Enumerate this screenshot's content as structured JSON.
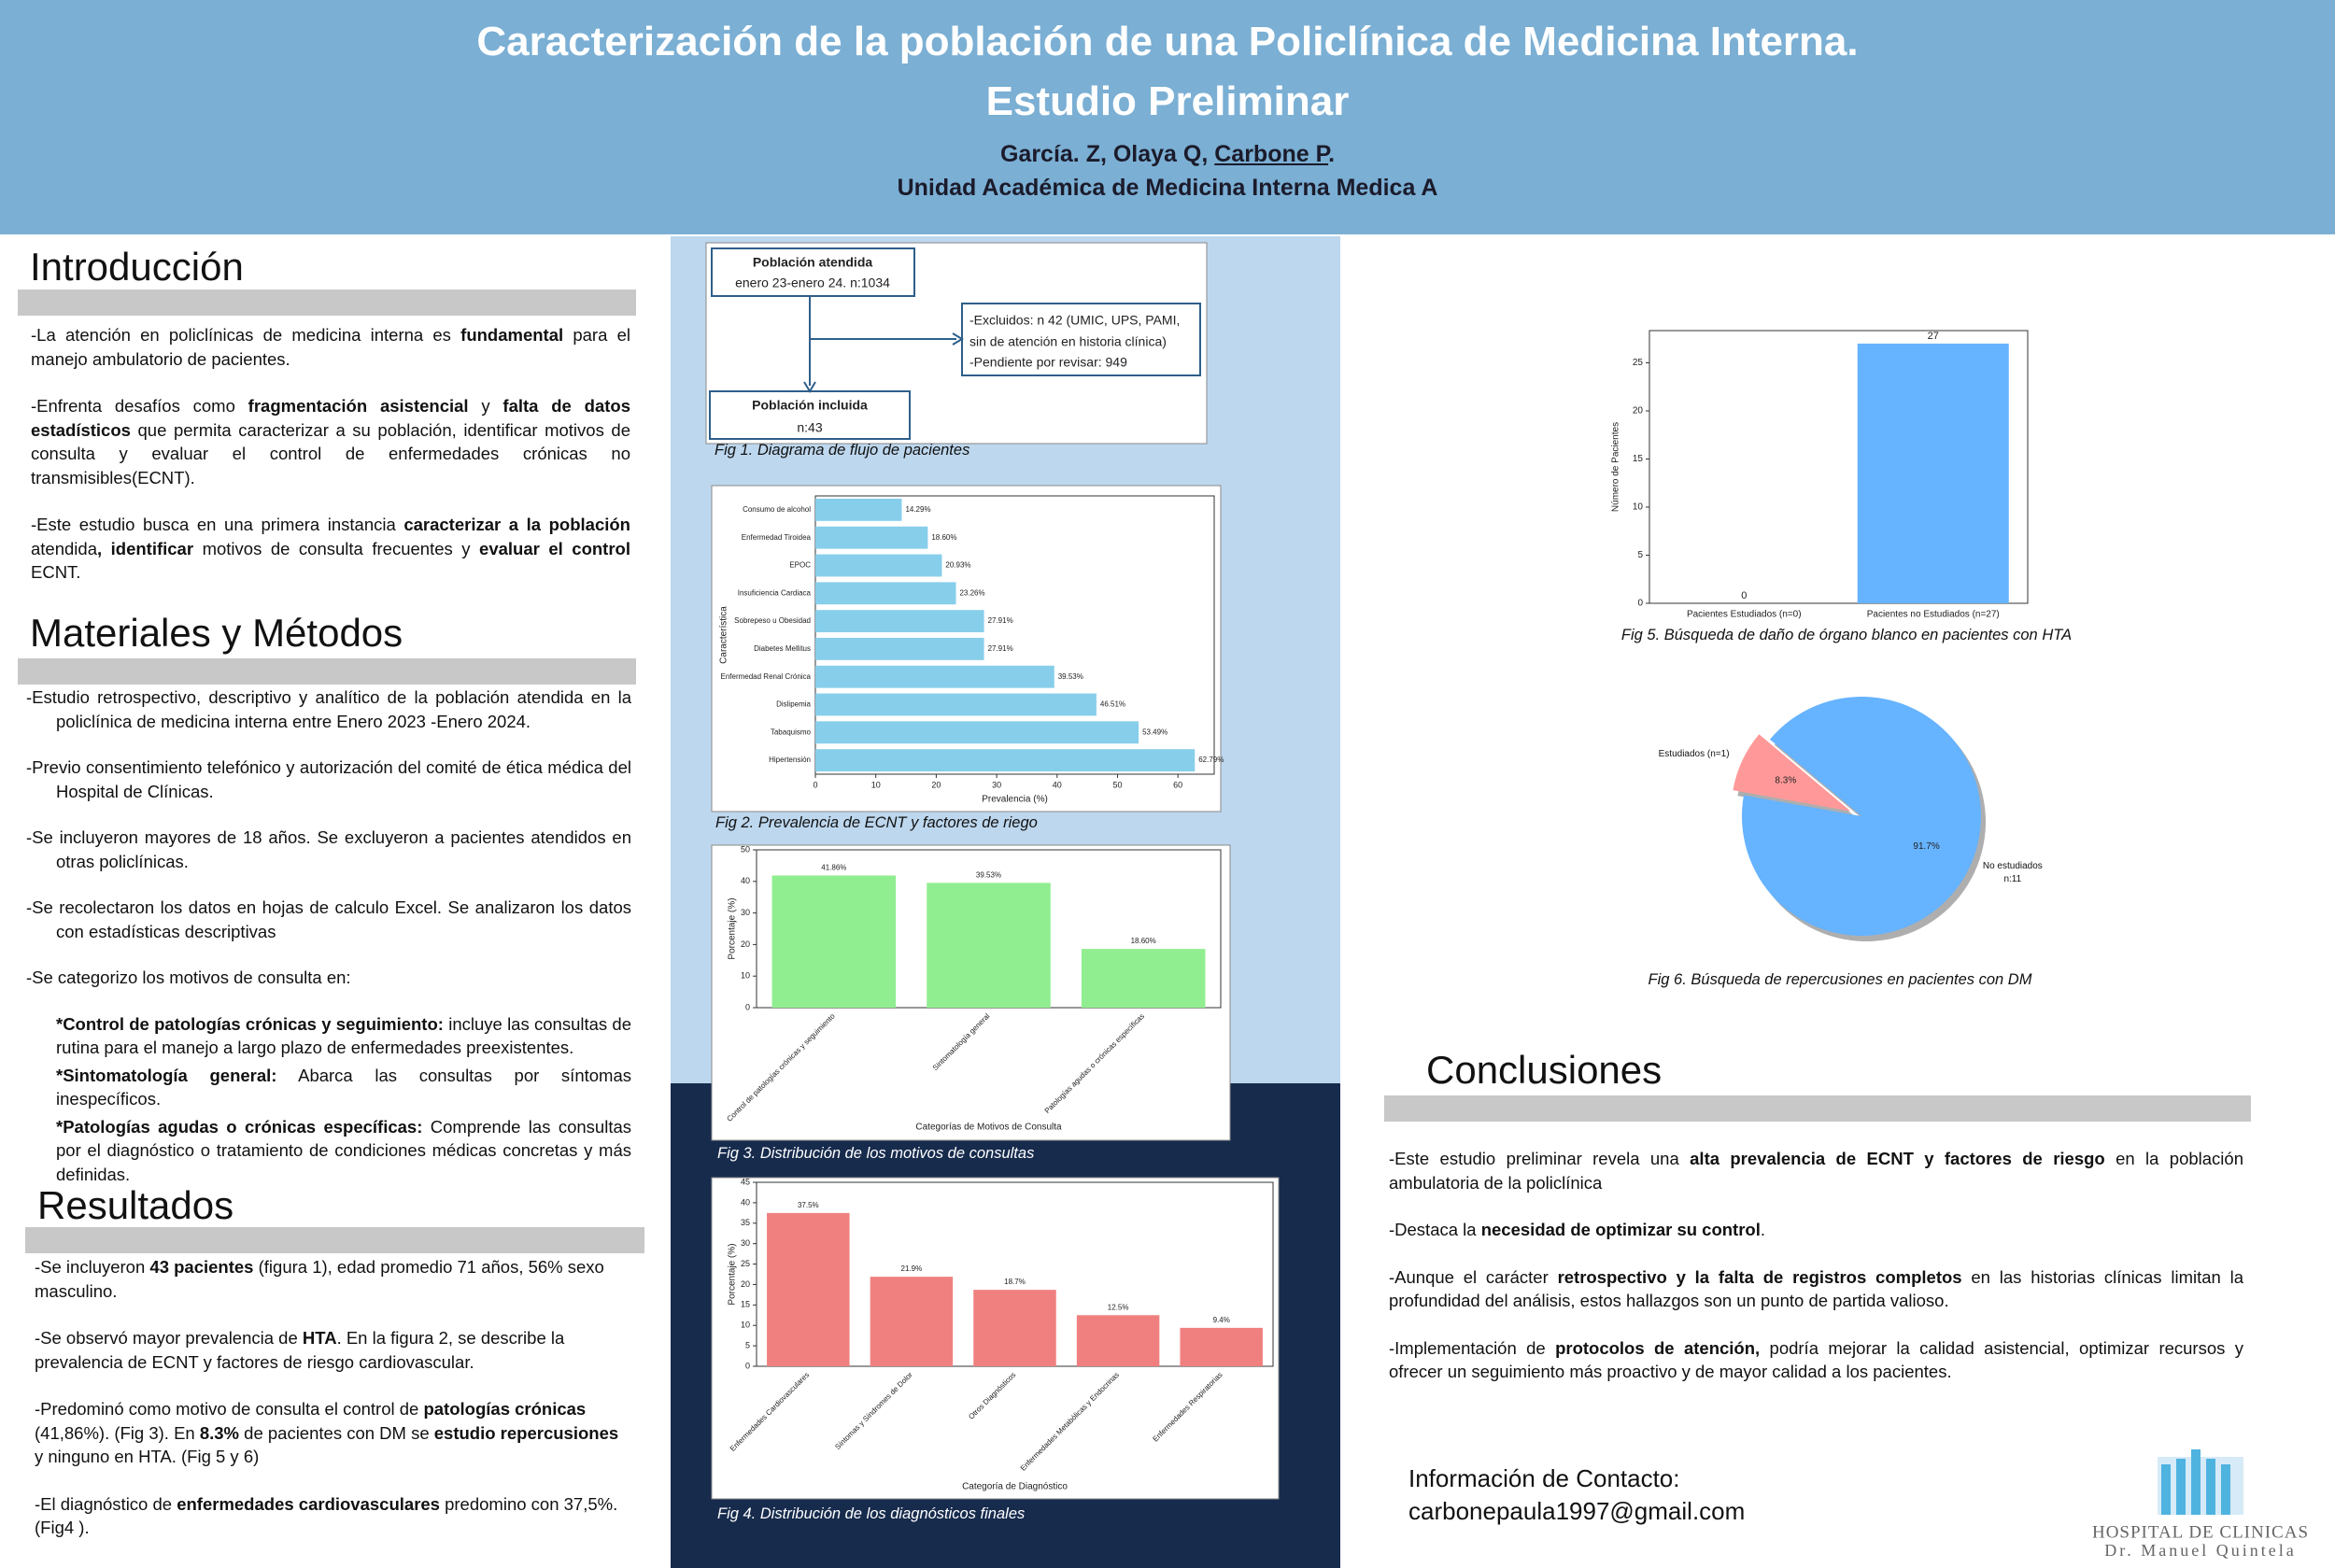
{
  "header": {
    "title": [
      "Caracterización de la población de una Policlínica de Medicina Interna.",
      "Estudio Preliminar"
    ],
    "authors": [
      "García. Z, Olaya Q, ",
      {
        "text": "Carbone P",
        "underline": true
      },
      "."
    ],
    "unit": "Unidad Académica de Medicina Interna Medica A"
  },
  "intro": {
    "heading": "Introducción",
    "paragraphs": [
      [
        "-La atención en policlínicas de medicina interna es ",
        {
          "text": "fundamental",
          "bold": true
        },
        " para el manejo ambulatorio de pacientes."
      ],
      [
        "-Enfrenta desafíos como ",
        {
          "text": "fragmentación asistencial",
          "bold": true
        },
        " y ",
        {
          "text": "falta de datos estadísticos",
          "bold": true
        },
        " que permita caracterizar a su población, identificar motivos de consulta y evaluar el control de enfermedades crónicas no transmisibles(ECNT)."
      ],
      [
        "-Este estudio busca en una primera instancia ",
        {
          "text": "caracterizar a la población",
          "bold": true
        },
        " atendida",
        {
          "text": ", identificar",
          "bold": true
        },
        " motivos de consulta frecuentes y ",
        {
          "text": "evaluar el control",
          "bold": true
        },
        " ECNT."
      ]
    ]
  },
  "methods": {
    "heading": "Materiales y Métodos",
    "paragraphs": [
      [
        "-Estudio retrospectivo, descriptivo y analítico de la población atendida en la policlínica de medicina interna entre Enero 2023 -Enero 2024."
      ],
      [
        "-Previo consentimiento telefónico y autorización del comité de ética médica del Hospital de Clínicas."
      ],
      [
        "-Se incluyeron mayores de 18 años. Se excluyeron a pacientes atendidos en otras policlínicas."
      ],
      [
        "-Se recolectaron los datos en hojas de calculo Excel. Se analizaron los datos con estadísticas descriptivas"
      ],
      [
        "-Se categorizo los motivos de consulta en:"
      ]
    ],
    "items": [
      [
        {
          "text": "*Control de patologías crónicas y seguimiento:",
          "bold": true
        },
        " incluye las consultas de rutina para el manejo a largo plazo de enfermedades preexistentes."
      ],
      [
        {
          "text": "*Sintomatología general:",
          "bold": true
        },
        " Abarca las consultas por síntomas inespecíficos."
      ],
      [
        {
          "text": "*Patologías agudas o crónicas específicas:",
          "bold": true
        },
        " Comprende las consultas por el diagnóstico o tratamiento de condiciones médicas concretas y más definidas."
      ]
    ]
  },
  "results": {
    "heading": "Resultados",
    "paragraphs": [
      [
        "-Se incluyeron ",
        {
          "text": "43 pacientes",
          "bold": true
        },
        " (figura 1), edad promedio 71 años, 56% sexo masculino."
      ],
      [
        "-Se observó mayor prevalencia de ",
        {
          "text": "HTA",
          "bold": true
        },
        ". En la figura 2, se describe la prevalencia de ECNT y factores de riesgo cardiovascular."
      ],
      [
        "-Predominó como motivo de consulta el control de ",
        {
          "text": "patologías crónicas",
          "bold": true
        },
        " (41,86%). (Fig 3). En ",
        {
          "text": "8.3%",
          "bold": true
        },
        " de pacientes con DM se ",
        {
          "text": "estudio repercusiones",
          "bold": true
        },
        " y ninguno en HTA. (Fig 5 y 6)"
      ],
      [
        "-El diagnóstico de ",
        {
          "text": "enfermedades cardiovasculares",
          "bold": true
        },
        " predomino con 37,5%. (Fig4 )."
      ]
    ]
  },
  "conclusions": {
    "heading": "Conclusiones",
    "paragraphs": [
      [
        "-Este estudio preliminar revela una ",
        {
          "text": "alta prevalencia de ECNT y factores de riesgo",
          "bold": true
        },
        " en la población ambulatoria de la policlínica"
      ],
      [
        "-Destaca la ",
        {
          "text": "necesidad de optimizar su control",
          "bold": true
        },
        "."
      ],
      [
        "-Aunque el carácter ",
        {
          "text": "retrospectivo y la falta de registros completos",
          "bold": true
        },
        " en las historias clínicas limitan la profundidad del análisis, estos hallazgos son un punto de partida valioso."
      ],
      [
        "-Implementación de ",
        {
          "text": "protocolos de atención,",
          "bold": true
        },
        " podría mejorar la calidad asistencial, optimizar recursos y ofrecer un seguimiento más proactivo y de mayor calidad a los pacientes."
      ]
    ]
  },
  "contact": [
    "Información de Contacto:",
    "carbonepaula1997@gmail.com"
  ],
  "logo": [
    "HOSPITAL DE CLINICAS",
    "Dr. Manuel Quintela"
  ],
  "figures": {
    "flow": {
      "start": [
        "Población atendida",
        "enero 23-enero 24. n:1034"
      ],
      "excluded": [
        "-Excluidos: n 42 (UMIC, UPS, PAMI,",
        "sin de atención en historia clínica)",
        "-Pendiente por revisar: 949"
      ],
      "included": [
        "Población incluida",
        "n:43"
      ],
      "caption": "Fig 1. Diagrama de flujo de pacientes"
    },
    "fig2": {
      "type": "hbar",
      "caption": "Fig 2. Prevalencia de ECNT y factores de riego",
      "categories": [
        "Consumo de alcohol",
        "Enfermedad Tiroidea",
        "EPOC",
        "Insuficiencia Cardiaca",
        "Sobrepeso u Obesidad",
        "Diabetes Mellitus",
        "Enfermedad Renal Crónica",
        "Dislipemia",
        "Tabaquismo",
        "Hipertensión"
      ],
      "values": [
        14.29,
        18.6,
        20.93,
        23.26,
        27.91,
        27.91,
        39.53,
        46.51,
        53.49,
        62.79
      ],
      "value_labels": [
        "14.29%",
        "18.60%",
        "20.93%",
        "23.26%",
        "27.91%",
        "27.91%",
        "39.53%",
        "46.51%",
        "53.49%",
        "62.79%"
      ],
      "color": "#87ceeb",
      "xlim": [
        0,
        66
      ],
      "xticks": [
        0,
        10,
        20,
        30,
        40,
        50,
        60
      ],
      "xlabel": "Prevalencia (%)",
      "ylabel": "Característica"
    },
    "fig3": {
      "type": "bar",
      "caption": "Fig 3. Distribución de los motivos de consultas",
      "categories": [
        "Control de patologías crónicas y seguimiento",
        "Sintomatología general",
        "Patologías agudas o crónicas específicas"
      ],
      "values": [
        41.86,
        39.53,
        18.6
      ],
      "value_labels": [
        "41.86%",
        "39.53%",
        "18.60%"
      ],
      "color": "#90ee90",
      "ylim": [
        0,
        50
      ],
      "yticks": [
        0,
        10,
        20,
        30,
        40,
        50
      ],
      "xtick_rotation": 45,
      "xlabel": "Categorías de Motivos de Consulta",
      "ylabel": "Porcentaje (%)"
    },
    "fig4": {
      "type": "bar",
      "caption": "Fig 4. Distribución de los diagnósticos finales",
      "categories": [
        "Enfermedades Cardiovasculares",
        "Síntomas y Síndromes de Dolor",
        "Otros Diagnósticos",
        "Enfermedades Metabólicas y Endocrinas",
        "Enfermedades Respiratorias"
      ],
      "values": [
        37.5,
        21.9,
        18.7,
        12.5,
        9.4
      ],
      "value_labels": [
        "37.5%",
        "21.9%",
        "18.7%",
        "12.5%",
        "9.4%"
      ],
      "color": "#f08080",
      "ylim": [
        0,
        45
      ],
      "yticks": [
        0,
        5,
        10,
        15,
        20,
        25,
        30,
        35,
        40,
        45
      ],
      "xtick_rotation": 45,
      "xlabel": "Categoría de Diagnóstico",
      "ylabel": "Porcentaje (%)"
    },
    "fig5": {
      "type": "bar",
      "caption": "Fig 5. Búsqueda de daño de órgano blanco en pacientes con HTA",
      "categories": [
        "Pacientes Estudiados (n=0)",
        "Pacientes no Estudiados (n=27)"
      ],
      "values": [
        0,
        27
      ],
      "color": "#66b3ff",
      "ylim": [
        0,
        28.35
      ],
      "yticks": [
        0,
        5,
        10,
        15,
        20,
        25
      ],
      "xtick_rotation": 0,
      "ylabel": "Número de Pacientes"
    },
    "fig6": {
      "type": "pie",
      "caption": "Fig 6. Búsqueda de repercusiones en pacientes con DM",
      "labels": [
        "Estudiados (n=1)",
        "No estudiados\nn:11"
      ],
      "values": [
        8.3,
        91.7
      ],
      "value_labels": [
        "8.3%",
        "91.7%"
      ],
      "colors": [
        "#ff9999",
        "#66b3ff"
      ]
    }
  }
}
